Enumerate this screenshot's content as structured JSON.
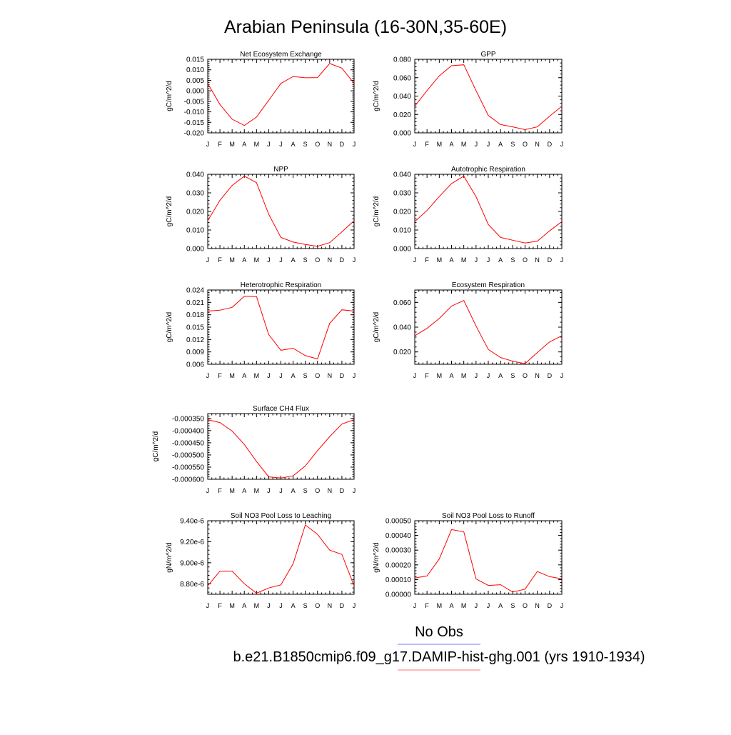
{
  "page": {
    "title": "Arabian Peninsula (16-30N,35-60E)",
    "months": [
      "J",
      "F",
      "M",
      "A",
      "M",
      "J",
      "J",
      "A",
      "S",
      "O",
      "N",
      "D",
      "J"
    ]
  },
  "legend": {
    "entries": [
      {
        "label": "No Obs",
        "color": "#7777ff"
      },
      {
        "label": "b.e21.B1850cmip6.f09_g17.DAMIP-hist-ghg.001 (yrs 1910-1934)",
        "color": "#ff7777"
      }
    ]
  },
  "series_color": "#ff0000",
  "chart_data": [
    {
      "type": "line",
      "title": "Net Ecosystem Exchange",
      "ylabel": "gC/m^2/d",
      "ylim": [
        -0.02,
        0.015
      ],
      "yticks": [
        0.015,
        0.01,
        0.005,
        0.0,
        -0.005,
        -0.01,
        -0.015,
        -0.02
      ],
      "yticklabels": [
        "0.015",
        "0.010",
        "0.005",
        "0.000",
        "-0.005",
        "-0.010",
        "-0.015",
        "-0.020"
      ],
      "values": [
        0.0035,
        -0.0065,
        -0.0135,
        -0.0165,
        -0.0125,
        -0.0045,
        0.0035,
        0.0068,
        0.0062,
        0.0063,
        0.013,
        0.0108,
        0.0035
      ]
    },
    {
      "type": "line",
      "title": "GPP",
      "ylabel": "gC/m^2/d",
      "ylim": [
        0.0,
        0.08
      ],
      "yticks": [
        0.08,
        0.06,
        0.04,
        0.02,
        0.0
      ],
      "yticklabels": [
        "0.080",
        "0.060",
        "0.040",
        "0.020",
        "0.000"
      ],
      "values": [
        0.029,
        0.046,
        0.062,
        0.073,
        0.074,
        0.046,
        0.019,
        0.009,
        0.0065,
        0.0035,
        0.0065,
        0.018,
        0.029
      ]
    },
    {
      "type": "line",
      "title": "NPP",
      "ylabel": "gC/m^2/d",
      "ylim": [
        0.0,
        0.04
      ],
      "yticks": [
        0.04,
        0.03,
        0.02,
        0.01,
        0.0
      ],
      "yticklabels": [
        "0.040",
        "0.030",
        "0.020",
        "0.010",
        "0.000"
      ],
      "values": [
        0.015,
        0.026,
        0.034,
        0.039,
        0.0355,
        0.0185,
        0.006,
        0.0035,
        0.0022,
        0.0012,
        0.0032,
        0.009,
        0.015
      ]
    },
    {
      "type": "line",
      "title": "Autotrophic Respiration",
      "ylabel": "gC/m^2/d",
      "ylim": [
        0.0,
        0.04
      ],
      "yticks": [
        0.04,
        0.03,
        0.02,
        0.01,
        0.0
      ],
      "yticklabels": [
        "0.040",
        "0.030",
        "0.020",
        "0.010",
        "0.000"
      ],
      "values": [
        0.0145,
        0.0205,
        0.028,
        0.035,
        0.039,
        0.028,
        0.013,
        0.006,
        0.0045,
        0.003,
        0.004,
        0.0095,
        0.0145
      ]
    },
    {
      "type": "line",
      "title": "Heterotrophic Respiration",
      "ylabel": "gC/m^2/d",
      "ylim": [
        0.006,
        0.024
      ],
      "yticks": [
        0.024,
        0.021,
        0.018,
        0.015,
        0.012,
        0.009,
        0.006
      ],
      "yticklabels": [
        "0.024",
        "0.021",
        "0.018",
        "0.015",
        "0.012",
        "0.009",
        "0.006"
      ],
      "values": [
        0.0189,
        0.0191,
        0.0198,
        0.0225,
        0.0224,
        0.0132,
        0.0094,
        0.0099,
        0.0081,
        0.0073,
        0.0159,
        0.0192,
        0.0189
      ]
    },
    {
      "type": "line",
      "title": "Ecosystem Respiration",
      "ylabel": "gC/m^2/d",
      "ylim": [
        0.01,
        0.07
      ],
      "yticks": [
        0.06,
        0.04,
        0.02
      ],
      "yticklabels": [
        "0.060",
        "0.040",
        "0.020"
      ],
      "values": [
        0.033,
        0.039,
        0.047,
        0.057,
        0.0615,
        0.041,
        0.022,
        0.0155,
        0.0125,
        0.0105,
        0.0195,
        0.028,
        0.033
      ]
    },
    {
      "type": "line",
      "title": "Surface CH4 Flux",
      "ylabel": "gC/m^2/d",
      "ylim": [
        -0.0006,
        -0.00033
      ],
      "yticks": [
        -0.00035,
        -0.0004,
        -0.00045,
        -0.0005,
        -0.00055,
        -0.0006
      ],
      "yticklabels": [
        "-0.000350",
        "-0.000400",
        "-0.000450",
        "-0.000500",
        "-0.000550",
        "-0.000600"
      ],
      "values": [
        -0.000355,
        -0.000367,
        -0.000402,
        -0.000457,
        -0.000527,
        -0.00059,
        -0.000595,
        -0.000586,
        -0.000545,
        -0.000482,
        -0.000425,
        -0.000373,
        -0.000355
      ]
    },
    {
      "type": "line",
      "title": "Soil NO3 Pool Loss to Leaching",
      "ylabel": "gN/m^2/d",
      "ylim": [
        8.7e-06,
        9.4e-06
      ],
      "yticks": [
        9.4e-06,
        9.2e-06,
        9e-06,
        8.8e-06
      ],
      "yticklabels": [
        "9.40e-6",
        "9.20e-6",
        "9.00e-6",
        "8.80e-6"
      ],
      "values": [
        8.78e-06,
        8.92e-06,
        8.92e-06,
        8.8e-06,
        8.71e-06,
        8.76e-06,
        8.79e-06,
        8.99e-06,
        9.36e-06,
        9.27e-06,
        9.12e-06,
        9.08e-06,
        8.78e-06
      ]
    },
    {
      "type": "line",
      "title": "Soil NO3 Pool Loss to Runoff",
      "ylabel": "gN/m^2/d",
      "ylim": [
        0.0,
        0.0005
      ],
      "yticks": [
        0.0005,
        0.0004,
        0.0003,
        0.0002,
        0.0001,
        0.0
      ],
      "yticklabels": [
        "0.00050",
        "0.00040",
        "0.00030",
        "0.00020",
        "0.00010",
        "0.00000"
      ],
      "values": [
        0.00011,
        0.000125,
        0.00024,
        0.00044,
        0.000425,
        0.000105,
        6e-05,
        6.5e-05,
        1.5e-05,
        3.5e-05,
        0.000155,
        0.00012,
        0.000105
      ]
    }
  ]
}
